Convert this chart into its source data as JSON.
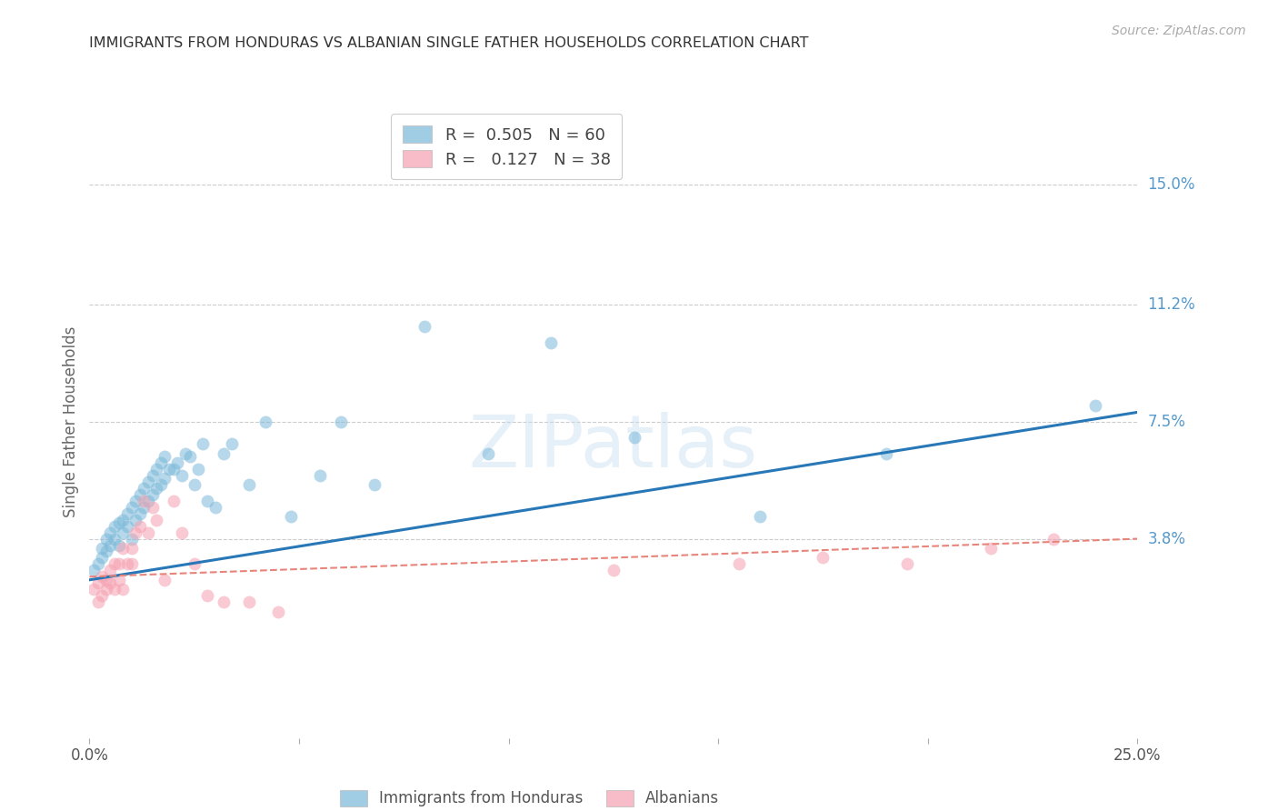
{
  "title": "IMMIGRANTS FROM HONDURAS VS ALBANIAN SINGLE FATHER HOUSEHOLDS CORRELATION CHART",
  "source": "Source: ZipAtlas.com",
  "ylabel": "Single Father Households",
  "ytick_labels": [
    "15.0%",
    "11.2%",
    "7.5%",
    "3.8%"
  ],
  "ytick_values": [
    0.15,
    0.112,
    0.075,
    0.038
  ],
  "xlim": [
    0.0,
    0.25
  ],
  "ylim": [
    -0.025,
    0.175
  ],
  "legend_r1": "0.505",
  "legend_n1": "60",
  "legend_r2": "0.127",
  "legend_n2": "38",
  "blue_color": "#7ab8d9",
  "pink_color": "#f5a0b0",
  "trendline_blue_color": "#2878b8",
  "trendline_pink_color": "#e8857a",
  "blue_scatter_x": [
    0.001,
    0.002,
    0.003,
    0.003,
    0.004,
    0.004,
    0.005,
    0.005,
    0.006,
    0.006,
    0.007,
    0.007,
    0.008,
    0.008,
    0.009,
    0.009,
    0.01,
    0.01,
    0.011,
    0.011,
    0.012,
    0.012,
    0.013,
    0.013,
    0.014,
    0.014,
    0.015,
    0.015,
    0.016,
    0.016,
    0.017,
    0.017,
    0.018,
    0.018,
    0.019,
    0.02,
    0.021,
    0.022,
    0.023,
    0.024,
    0.025,
    0.026,
    0.027,
    0.028,
    0.03,
    0.032,
    0.034,
    0.038,
    0.042,
    0.048,
    0.055,
    0.06,
    0.068,
    0.08,
    0.095,
    0.11,
    0.13,
    0.16,
    0.19,
    0.24
  ],
  "blue_scatter_y": [
    0.028,
    0.03,
    0.032,
    0.035,
    0.034,
    0.038,
    0.036,
    0.04,
    0.038,
    0.042,
    0.036,
    0.043,
    0.04,
    0.044,
    0.042,
    0.046,
    0.038,
    0.048,
    0.044,
    0.05,
    0.046,
    0.052,
    0.048,
    0.054,
    0.05,
    0.056,
    0.052,
    0.058,
    0.054,
    0.06,
    0.055,
    0.062,
    0.057,
    0.064,
    0.06,
    0.06,
    0.062,
    0.058,
    0.065,
    0.064,
    0.055,
    0.06,
    0.068,
    0.05,
    0.048,
    0.065,
    0.068,
    0.055,
    0.075,
    0.045,
    0.058,
    0.075,
    0.055,
    0.105,
    0.065,
    0.1,
    0.07,
    0.045,
    0.065,
    0.08
  ],
  "pink_scatter_x": [
    0.001,
    0.002,
    0.002,
    0.003,
    0.003,
    0.004,
    0.004,
    0.005,
    0.005,
    0.006,
    0.006,
    0.007,
    0.007,
    0.008,
    0.008,
    0.009,
    0.01,
    0.01,
    0.011,
    0.012,
    0.013,
    0.014,
    0.015,
    0.016,
    0.018,
    0.02,
    0.022,
    0.025,
    0.028,
    0.032,
    0.038,
    0.045,
    0.125,
    0.155,
    0.175,
    0.195,
    0.215,
    0.23
  ],
  "pink_scatter_y": [
    0.022,
    0.024,
    0.018,
    0.026,
    0.02,
    0.025,
    0.022,
    0.028,
    0.024,
    0.03,
    0.022,
    0.025,
    0.03,
    0.022,
    0.035,
    0.03,
    0.03,
    0.035,
    0.04,
    0.042,
    0.05,
    0.04,
    0.048,
    0.044,
    0.025,
    0.05,
    0.04,
    0.03,
    0.02,
    0.018,
    0.018,
    0.015,
    0.028,
    0.03,
    0.032,
    0.03,
    0.035,
    0.038
  ],
  "blue_trend_x": [
    0.0,
    0.25
  ],
  "blue_trend_y": [
    0.025,
    0.078
  ],
  "pink_trend_x": [
    0.0,
    0.25
  ],
  "pink_trend_y": [
    0.026,
    0.038
  ]
}
